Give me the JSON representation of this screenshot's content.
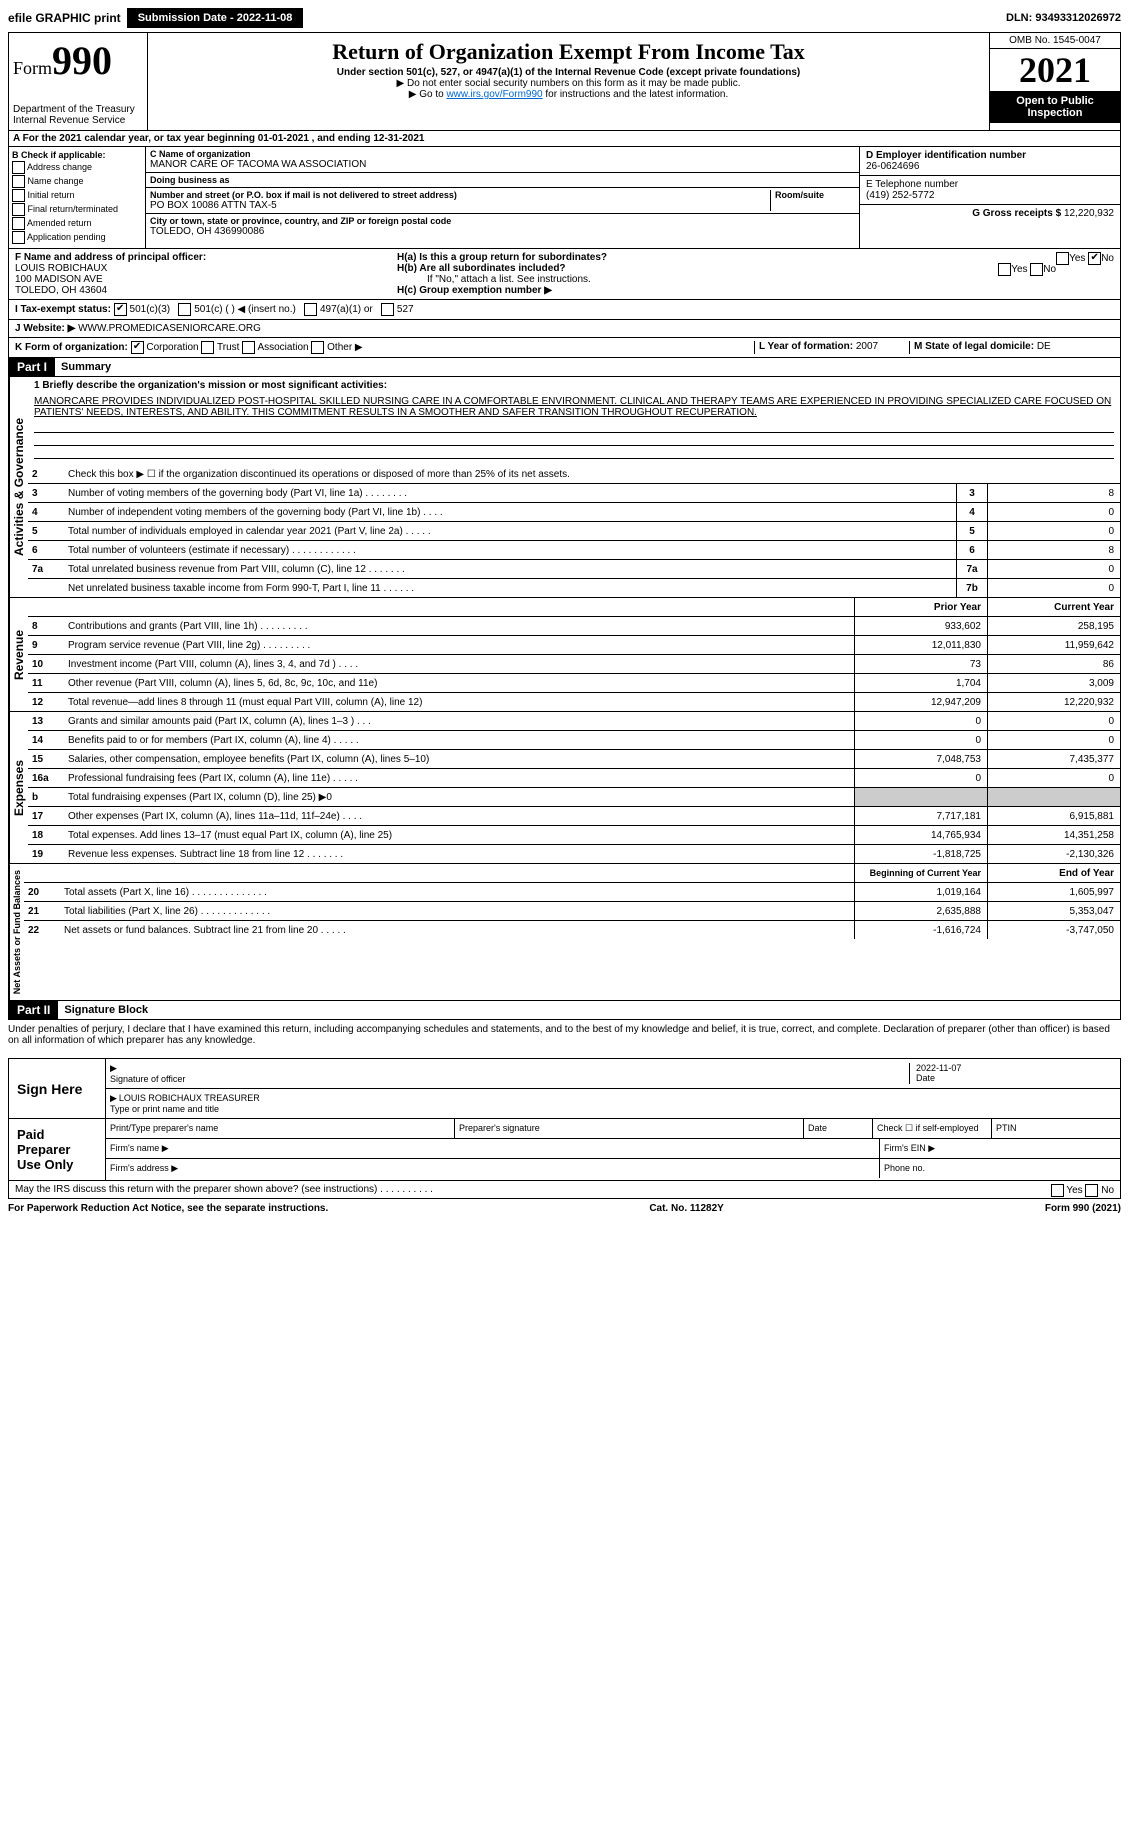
{
  "topbar": {
    "efile": "efile GRAPHIC print",
    "submission_label": "Submission Date - 2022-11-08",
    "dln": "DLN: 93493312026972"
  },
  "header": {
    "form_label": "Form",
    "form_num": "990",
    "dept": "Department of the Treasury",
    "irs": "Internal Revenue Service",
    "title": "Return of Organization Exempt From Income Tax",
    "subtitle": "Under section 501(c), 527, or 4947(a)(1) of the Internal Revenue Code (except private foundations)",
    "note1": "▶ Do not enter social security numbers on this form as it may be made public.",
    "note2_pre": "▶ Go to ",
    "note2_link": "www.irs.gov/Form990",
    "note2_post": " for instructions and the latest information.",
    "omb": "OMB No. 1545-0047",
    "year": "2021",
    "open": "Open to Public Inspection"
  },
  "row_a": "A For the 2021 calendar year, or tax year beginning 01-01-2021    , and ending 12-31-2021",
  "box_b": {
    "label": "B Check if applicable:",
    "opts": [
      "Address change",
      "Name change",
      "Initial return",
      "Final return/terminated",
      "Amended return",
      "Application pending"
    ]
  },
  "box_c": {
    "name_lbl": "C Name of organization",
    "name": "MANOR CARE OF TACOMA WA ASSOCIATION",
    "dba_lbl": "Doing business as",
    "dba": "",
    "addr_lbl": "Number and street (or P.O. box if mail is not delivered to street address)",
    "room_lbl": "Room/suite",
    "addr": "PO BOX 10086 ATTN TAX-5",
    "city_lbl": "City or town, state or province, country, and ZIP or foreign postal code",
    "city": "TOLEDO, OH  436990086"
  },
  "box_d": {
    "lbl": "D Employer identification number",
    "val": "26-0624696"
  },
  "box_e": {
    "lbl": "E Telephone number",
    "val": "(419) 252-5772"
  },
  "box_g": {
    "lbl": "G Gross receipts $",
    "val": "12,220,932"
  },
  "box_f": {
    "lbl": "F  Name and address of principal officer:",
    "name": "LOUIS ROBICHAUX",
    "addr1": "100 MADISON AVE",
    "addr2": "TOLEDO, OH  43604"
  },
  "box_h": {
    "a": "H(a)  Is this a group return for subordinates?",
    "b": "H(b)  Are all subordinates included?",
    "b_note": "If \"No,\" attach a list. See instructions.",
    "c": "H(c)  Group exemption number ▶",
    "yes": "Yes",
    "no": "No"
  },
  "row_i": {
    "lbl": "I  Tax-exempt status:",
    "o1": "501(c)(3)",
    "o2": "501(c) (  ) ◀ (insert no.)",
    "o3": "497(a)(1) or",
    "o4": "527"
  },
  "row_j": {
    "lbl": "J   Website: ▶",
    "val": " WWW.PROMEDICASENIORCARE.ORG"
  },
  "row_k": {
    "lbl": "K Form of organization:",
    "o1": "Corporation",
    "o2": "Trust",
    "o3": "Association",
    "o4": "Other ▶"
  },
  "row_l": {
    "lbl": "L Year of formation:",
    "val": "2007"
  },
  "row_m": {
    "lbl": "M State of legal domicile:",
    "val": "DE"
  },
  "part1": {
    "hdr": "Part I",
    "title": "Summary"
  },
  "activities": {
    "tab": "Activities & Governance",
    "l1": "1  Briefly describe the organization's mission or most significant activities:",
    "mission": "MANORCARE PROVIDES INDIVIDUALIZED POST-HOSPITAL SKILLED NURSING CARE IN A COMFORTABLE ENVIRONMENT. CLINICAL AND THERAPY TEAMS ARE EXPERIENCED IN PROVIDING SPECIALIZED CARE FOCUSED ON PATIENTS' NEEDS, INTERESTS, AND ABILITY. THIS COMMITMENT RESULTS IN A SMOOTHER AND SAFER TRANSITION THROUGHOUT RECUPERATION.",
    "l2": "Check this box ▶ ☐  if the organization discontinued its operations or disposed of more than 25% of its net assets.",
    "lines": [
      {
        "n": "3",
        "t": "Number of voting members of the governing body (Part VI, line 1a)   .    .    .    .    .    .    .    .",
        "b": "3",
        "v": "8"
      },
      {
        "n": "4",
        "t": "Number of independent voting members of the governing body (Part VI, line 1b)   .    .    .    .",
        "b": "4",
        "v": "0"
      },
      {
        "n": "5",
        "t": "Total number of individuals employed in calendar year 2021 (Part V, line 2a)   .    .    .    .    .",
        "b": "5",
        "v": "0"
      },
      {
        "n": "6",
        "t": "Total number of volunteers (estimate if necessary)   .    .    .    .    .    .    .    .    .    .    .    .",
        "b": "6",
        "v": "8"
      },
      {
        "n": "7a",
        "t": "Total unrelated business revenue from Part VIII, column (C), line 12   .    .    .    .    .    .    .",
        "b": "7a",
        "v": "0"
      },
      {
        "n": "",
        "t": "Net unrelated business taxable income from Form 990-T, Part I, line 11   .    .    .    .    .    .",
        "b": "7b",
        "v": "0"
      }
    ]
  },
  "revenue": {
    "tab": "Revenue",
    "hdr_prior": "Prior Year",
    "hdr_curr": "Current Year",
    "lines": [
      {
        "n": "8",
        "t": "Contributions and grants (Part VIII, line 1h)   .    .    .    .    .    .    .    .    .",
        "p": "933,602",
        "c": "258,195"
      },
      {
        "n": "9",
        "t": "Program service revenue (Part VIII, line 2g)   .    .    .    .    .    .    .    .    .",
        "p": "12,011,830",
        "c": "11,959,642"
      },
      {
        "n": "10",
        "t": "Investment income (Part VIII, column (A), lines 3, 4, and 7d )   .    .    .    .",
        "p": "73",
        "c": "86"
      },
      {
        "n": "11",
        "t": "Other revenue (Part VIII, column (A), lines 5, 6d, 8c, 9c, 10c, and 11e)",
        "p": "1,704",
        "c": "3,009"
      },
      {
        "n": "12",
        "t": "Total revenue—add lines 8 through 11 (must equal Part VIII, column (A), line 12)",
        "p": "12,947,209",
        "c": "12,220,932"
      }
    ]
  },
  "expenses": {
    "tab": "Expenses",
    "lines": [
      {
        "n": "13",
        "t": "Grants and similar amounts paid (Part IX, column (A), lines 1–3 )   .    .    .",
        "p": "0",
        "c": "0"
      },
      {
        "n": "14",
        "t": "Benefits paid to or for members (Part IX, column (A), line 4)   .    .    .    .    .",
        "p": "0",
        "c": "0"
      },
      {
        "n": "15",
        "t": "Salaries, other compensation, employee benefits (Part IX, column (A), lines 5–10)",
        "p": "7,048,753",
        "c": "7,435,377"
      },
      {
        "n": "16a",
        "t": "Professional fundraising fees (Part IX, column (A), line 11e)   .    .    .    .    .",
        "p": "0",
        "c": "0"
      },
      {
        "n": "b",
        "t": "Total fundraising expenses (Part IX, column (D), line 25) ▶0",
        "p": "",
        "c": "",
        "shade": true
      },
      {
        "n": "17",
        "t": "Other expenses (Part IX, column (A), lines 11a–11d, 11f–24e)   .    .    .    .",
        "p": "7,717,181",
        "c": "6,915,881"
      },
      {
        "n": "18",
        "t": "Total expenses. Add lines 13–17 (must equal Part IX, column (A), line 25)",
        "p": "14,765,934",
        "c": "14,351,258"
      },
      {
        "n": "19",
        "t": "Revenue less expenses. Subtract line 18 from line 12   .    .    .    .    .    .    .",
        "p": "-1,818,725",
        "c": "-2,130,326"
      }
    ]
  },
  "netassets": {
    "tab": "Net Assets or Fund Balances",
    "hdr_begin": "Beginning of Current Year",
    "hdr_end": "End of Year",
    "lines": [
      {
        "n": "20",
        "t": "Total assets (Part X, line 16)   .    .    .    .    .    .    .    .    .    .    .    .    .    .",
        "p": "1,019,164",
        "c": "1,605,997"
      },
      {
        "n": "21",
        "t": "Total liabilities (Part X, line 26)   .    .    .    .    .    .    .    .    .    .    .    .    .",
        "p": "2,635,888",
        "c": "5,353,047"
      },
      {
        "n": "22",
        "t": "Net assets or fund balances. Subtract line 21 from line 20   .    .    .    .    .",
        "p": "-1,616,724",
        "c": "-3,747,050"
      }
    ]
  },
  "part2": {
    "hdr": "Part II",
    "title": "Signature Block"
  },
  "declaration": "Under penalties of perjury, I declare that I have examined this return, including accompanying schedules and statements, and to the best of my knowledge and belief, it is true, correct, and complete. Declaration of preparer (other than officer) is based on all information of which preparer has any knowledge.",
  "sign": {
    "left": "Sign Here",
    "sig_lbl": "Signature of officer",
    "date": "2022-11-07",
    "date_lbl": "Date",
    "name": "LOUIS ROBICHAUX  TREASURER",
    "name_lbl": "Type or print name and title"
  },
  "paid": {
    "left": "Paid Preparer Use Only",
    "c1": "Print/Type preparer's name",
    "c2": "Preparer's signature",
    "c3": "Date",
    "c4": "Check ☐ if self-employed",
    "c5": "PTIN",
    "firm_name": "Firm's name    ▶",
    "firm_ein": "Firm's EIN ▶",
    "firm_addr": "Firm's address ▶",
    "phone": "Phone no."
  },
  "may_discuss": "May the IRS discuss this return with the preparer shown above? (see instructions)   .    .    .    .    .    .    .    .    .    .",
  "footer": {
    "left": "For Paperwork Reduction Act Notice, see the separate instructions.",
    "mid": "Cat. No. 11282Y",
    "right": "Form 990 (2021)"
  }
}
